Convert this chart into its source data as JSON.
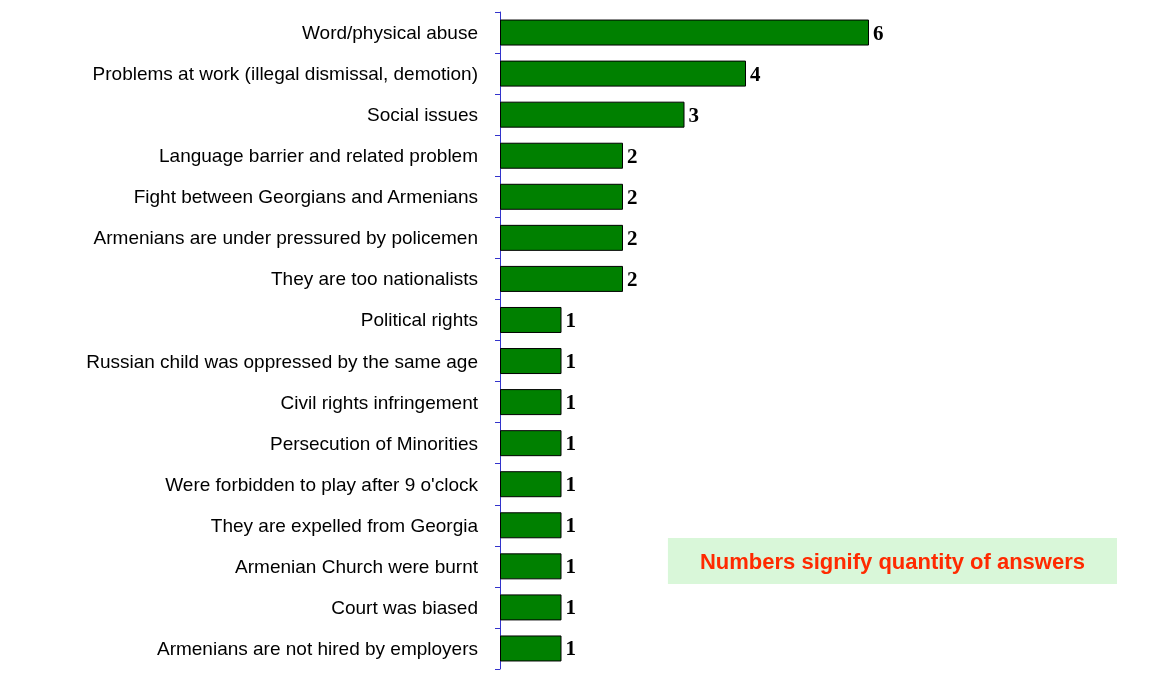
{
  "chart_data": {
    "type": "bar",
    "orientation": "horizontal",
    "data_labels": true,
    "categories": [
      "Word/physical abuse",
      "Problems at work (illegal dismissal, demotion)",
      "Social issues",
      "Language barrier and related problem",
      "Fight between Georgians and Armenians",
      "Armenians are under pressured by policemen",
      "They are too nationalists",
      "Political rights",
      "Russian child was oppressed by the same age",
      "Civil rights infringement",
      "Persecution of Minorities",
      "Were forbidden to play after 9 o'clock",
      "They are expelled from Georgia",
      "Armenian Church were burnt",
      "Court was biased",
      "Armenians are not hired by employers"
    ],
    "values": [
      6,
      4,
      3,
      2,
      2,
      2,
      2,
      1,
      1,
      1,
      1,
      1,
      1,
      1,
      1,
      1
    ],
    "color": "#008000",
    "annotations": [
      "Numbers signify quantity of answers"
    ]
  }
}
